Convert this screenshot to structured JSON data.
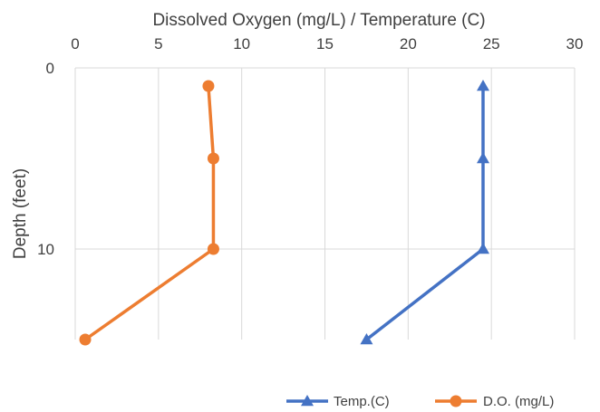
{
  "chart_data": {
    "type": "line",
    "xlabel": "Dissolved Oxygen (mg/L) / Temperature (C)",
    "ylabel": "Depth (feet)",
    "xlim": [
      0,
      30
    ],
    "ylim": [
      0,
      15
    ],
    "x_ticks": [
      "0",
      "5",
      "10",
      "15",
      "20",
      "25",
      "30"
    ],
    "y_ticks": [
      "0",
      "10"
    ],
    "x_axis_position": "top",
    "y_axis_inverted": true,
    "grid": "major gridlines on both axes",
    "legend_position": "bottom-right",
    "series": [
      {
        "name": "Temp.(C)",
        "color": "#4472C4",
        "marker": "triangle",
        "points": [
          {
            "x": 24.5,
            "y": 1
          },
          {
            "x": 24.5,
            "y": 5
          },
          {
            "x": 24.5,
            "y": 10
          },
          {
            "x": 17.5,
            "y": 15
          }
        ]
      },
      {
        "name": "D.O. (mg/L)",
        "color": "#ED7D31",
        "marker": "circle",
        "points": [
          {
            "x": 8.0,
            "y": 1
          },
          {
            "x": 8.3,
            "y": 5
          },
          {
            "x": 8.3,
            "y": 10
          },
          {
            "x": 0.6,
            "y": 15
          }
        ]
      }
    ]
  }
}
